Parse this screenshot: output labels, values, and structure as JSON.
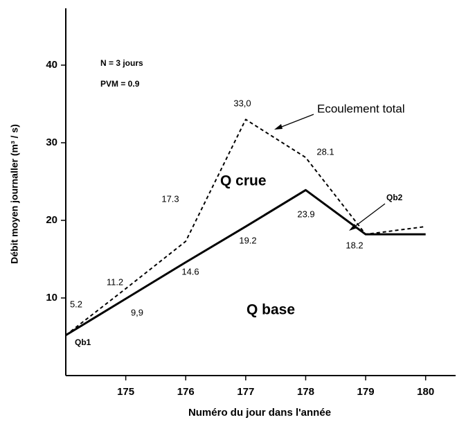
{
  "chart_data": {
    "type": "line",
    "x_label": "Numéro du jour dans l'année",
    "y_label": "Débit moyen journaller (m³ / s)",
    "x": [
      174,
      175,
      176,
      177,
      178,
      179,
      180
    ],
    "xlim": [
      174,
      180.5
    ],
    "xticks": [
      175,
      176,
      177,
      178,
      179,
      180
    ],
    "ylim": [
      0,
      47
    ],
    "yticks": [
      10,
      20,
      30,
      40
    ],
    "grid": false,
    "series": [
      {
        "name": "Q base",
        "color": "#000000",
        "dash": "solid",
        "values": [
          5.2,
          9.9,
          14.6,
          19.2,
          23.9,
          18.2,
          18.2
        ],
        "value_labels": [
          null,
          "9,9",
          "14.6",
          "19.2",
          "23.9",
          "18.2",
          null
        ]
      },
      {
        "name": "Ecoulement total",
        "color": "#000000",
        "dash": "dashed",
        "values": [
          5.2,
          11.2,
          17.3,
          33.0,
          28.1,
          18.2,
          19.2
        ],
        "value_labels": [
          "5.2",
          "11.2",
          "17.3",
          "33,0",
          "28.1",
          null,
          null
        ]
      }
    ],
    "annotations": [
      "N = 3 jours",
      "PVM = 0.9",
      "Q crue",
      "Q base",
      "Qb1",
      "Qb2"
    ]
  }
}
